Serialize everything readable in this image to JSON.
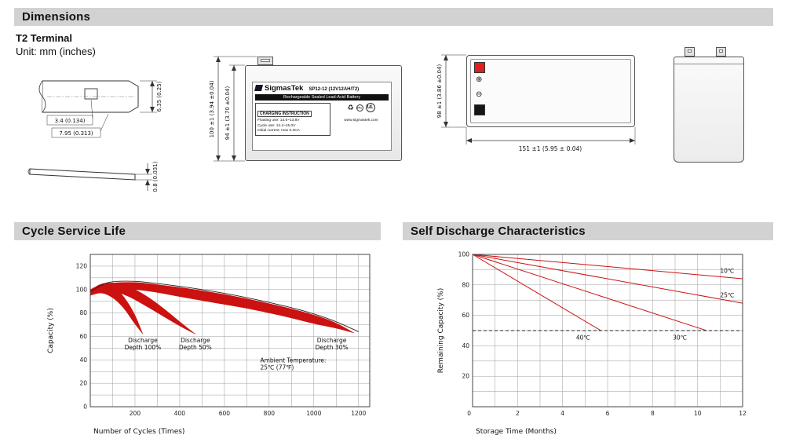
{
  "colors": {
    "header_bg": "#d2d2d2",
    "chart_red": "#cc1111",
    "trend_line": "#222222",
    "terminal_red": "#dd2020",
    "terminal_black": "#161616",
    "grid": "#9c9c9c"
  },
  "sections": {
    "dimensions": {
      "title": "Dimensions",
      "subtitle": "T2 Terminal",
      "unit_note": "Unit: mm (inches)"
    },
    "cycle_service_life": {
      "title": "Cycle Service Life"
    },
    "self_discharge": {
      "title": "Self Discharge Characteristics"
    }
  },
  "terminal_detail": {
    "dim_tab_height": "6.35 (0.25)",
    "dim_slot": "3.4 (0.134)",
    "dim_tab_width": "7.95 (0.313)",
    "dim_thickness": "0.8 (0.031)"
  },
  "front_view": {
    "dim_total_height": "100 ±1 (3.94 ±0.04)",
    "dim_case_height": "94 ±1 (3.70 ±0.04)",
    "label": {
      "brand": "SigmasTek",
      "model": "SP12-12 (12V12AH/T2)",
      "type_line": "Rechargeable Sealed Lead-Acid Battery",
      "charging_title": "CHARGING INSTRUCTION",
      "charging_lines": [
        "Floating use: 13.5~13.8V",
        "Cycle use: 14.4~15.0V",
        "Initial current: max 0.3CA"
      ],
      "recycle_icon": "♻",
      "pb": "Pb",
      "ul": "UL",
      "website": "www.sigmastek.com"
    }
  },
  "top_view": {
    "dim_height": "98 ±1 (3.86 ±0.04)",
    "dim_width": "151 ±1 (5.95 ± 0.04)",
    "positive_symbol": "⊕",
    "negative_symbol": "⊖"
  },
  "chart_data": [
    {
      "type": "area",
      "title": "Cycle Service Life",
      "xlabel": "Number of Cycles (Times)",
      "ylabel": "Capacity (%)",
      "xlim": [
        0,
        1250
      ],
      "ylim": [
        0,
        130
      ],
      "xticks": [
        200,
        400,
        600,
        800,
        1000,
        1200
      ],
      "yticks": [
        0,
        20,
        40,
        60,
        80,
        100,
        120
      ],
      "xgrid_step": 100,
      "ygrid_step": 10,
      "grid": true,
      "legend_position": "none",
      "series": [
        {
          "name": "Discharge Depth 100%",
          "type": "band",
          "color": "#cc1111",
          "upper": [
            [
              0,
              99
            ],
            [
              40,
              104
            ],
            [
              80,
              105
            ],
            [
              120,
              100
            ],
            [
              160,
              91
            ],
            [
              200,
              78
            ],
            [
              235,
              62
            ]
          ],
          "lower": [
            [
              0,
              95
            ],
            [
              50,
              97
            ],
            [
              100,
              93
            ],
            [
              150,
              84
            ],
            [
              195,
              72
            ],
            [
              235,
              62
            ]
          ]
        },
        {
          "name": "Discharge Depth 50%",
          "type": "band",
          "color": "#cc1111",
          "upper": [
            [
              0,
              100
            ],
            [
              60,
              105
            ],
            [
              130,
              105
            ],
            [
              200,
              100
            ],
            [
              270,
              92
            ],
            [
              340,
              82
            ],
            [
              410,
              71
            ],
            [
              470,
              62
            ]
          ],
          "lower": [
            [
              0,
              96
            ],
            [
              80,
              99
            ],
            [
              160,
              95
            ],
            [
              240,
              87
            ],
            [
              320,
              78
            ],
            [
              400,
              69
            ],
            [
              470,
              62
            ]
          ]
        },
        {
          "name": "Discharge Depth 30%",
          "type": "band",
          "color": "#cc1111",
          "upper": [
            [
              0,
              100
            ],
            [
              80,
              105
            ],
            [
              200,
              106
            ],
            [
              350,
              103
            ],
            [
              500,
              99
            ],
            [
              650,
              94
            ],
            [
              800,
              88
            ],
            [
              950,
              81
            ],
            [
              1080,
              73
            ],
            [
              1180,
              63
            ]
          ],
          "lower": [
            [
              0,
              97
            ],
            [
              100,
              101
            ],
            [
              250,
              99
            ],
            [
              400,
              94
            ],
            [
              550,
              89
            ],
            [
              700,
              84
            ],
            [
              850,
              78
            ],
            [
              1000,
              71
            ],
            [
              1100,
              67
            ],
            [
              1180,
              63
            ]
          ]
        },
        {
          "name": "trend",
          "type": "line",
          "color": "#222222",
          "width": 0.9,
          "points": [
            [
              0,
              98
            ],
            [
              80,
              106
            ],
            [
              200,
              107
            ],
            [
              350,
              104
            ],
            [
              500,
              100
            ],
            [
              650,
              95
            ],
            [
              800,
              89
            ],
            [
              950,
              82
            ],
            [
              1080,
              74
            ],
            [
              1200,
              64
            ]
          ]
        }
      ],
      "annotations": [
        {
          "lines": [
            "Discharge",
            "Depth 100%"
          ],
          "x": 235,
          "y": 55,
          "anchor": "middle"
        },
        {
          "lines": [
            "Discharge",
            "Depth 50%"
          ],
          "x": 470,
          "y": 55,
          "anchor": "middle"
        },
        {
          "lines": [
            "Discharge",
            "Depth 30%"
          ],
          "x": 1080,
          "y": 55,
          "anchor": "middle"
        },
        {
          "lines": [
            "Ambient Temperature:",
            "25℃ (77℉)"
          ],
          "x": 760,
          "y": 38,
          "anchor": "start"
        }
      ]
    },
    {
      "type": "line",
      "title": "Self Discharge Characteristics",
      "xlabel": "Storage Time (Months)",
      "ylabel": "Remaining Capacity (%)",
      "xlim": [
        0,
        12
      ],
      "ylim": [
        0,
        100
      ],
      "xticks": [
        2,
        4,
        6,
        8,
        10,
        12
      ],
      "yticks": [
        20,
        40,
        60,
        80,
        100
      ],
      "xgrid_step": 1,
      "ygrid_step": 10,
      "grid": true,
      "origin_label": "0",
      "legend_position": "inline",
      "series": [
        {
          "name": "10℃",
          "type": "line",
          "color": "#cc1111",
          "width": 1,
          "points": [
            [
              0,
              100
            ],
            [
              12,
              84
            ]
          ]
        },
        {
          "name": "25℃",
          "type": "line",
          "color": "#cc1111",
          "width": 1,
          "points": [
            [
              0,
              100
            ],
            [
              12,
              68
            ]
          ]
        },
        {
          "name": "30℃",
          "type": "line",
          "color": "#cc1111",
          "width": 1,
          "points": [
            [
              0,
              100
            ],
            [
              10.4,
              50
            ]
          ]
        },
        {
          "name": "40℃",
          "type": "line",
          "color": "#cc1111",
          "width": 1,
          "points": [
            [
              0,
              100
            ],
            [
              5.7,
              50
            ]
          ]
        },
        {
          "name": "50% reference",
          "type": "line",
          "color": "#222222",
          "width": 0.9,
          "dash": "4,3",
          "points": [
            [
              0,
              50
            ],
            [
              12,
              50
            ]
          ]
        }
      ],
      "annotations": [
        {
          "lines": [
            "10℃"
          ],
          "x": 11.0,
          "y": 88,
          "anchor": "start"
        },
        {
          "lines": [
            "25℃"
          ],
          "x": 11.0,
          "y": 72,
          "anchor": "start"
        },
        {
          "lines": [
            "30℃"
          ],
          "x": 8.9,
          "y": 44,
          "anchor": "start"
        },
        {
          "lines": [
            "40℃"
          ],
          "x": 4.6,
          "y": 44,
          "anchor": "start"
        }
      ]
    }
  ]
}
